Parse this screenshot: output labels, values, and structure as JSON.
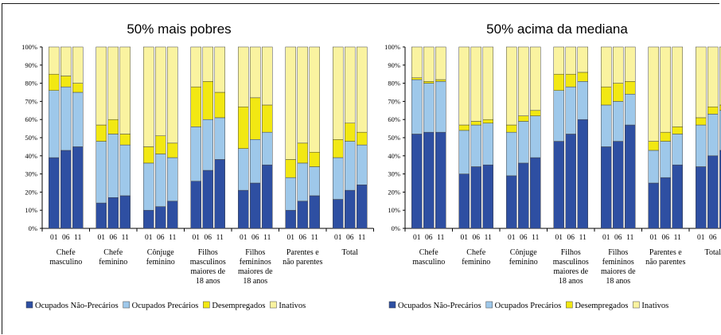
{
  "chart_data": [
    {
      "type": "bar",
      "stacked": true,
      "title": "50% mais pobres",
      "groups": [
        {
          "label": [
            "Chefe",
            "masculino"
          ]
        },
        {
          "label": [
            "Chefe",
            "feminino"
          ]
        },
        {
          "label": [
            "Cônjuge",
            "feminino"
          ]
        },
        {
          "label": [
            "Filhos",
            "masculinos",
            "maiores de",
            "18 anos"
          ]
        },
        {
          "label": [
            "Filhos",
            "femininos",
            "maiores de",
            "18 anos"
          ]
        },
        {
          "label": [
            "Parentes e",
            "não parentes"
          ]
        },
        {
          "label": [
            "Total"
          ]
        }
      ],
      "years": [
        "01",
        "06",
        "11"
      ],
      "series": [
        {
          "name": "Ocupados Não-Precários",
          "color": "#2e4fa2",
          "values": [
            [
              39,
              43,
              45
            ],
            [
              14,
              17,
              18
            ],
            [
              10,
              12,
              15
            ],
            [
              26,
              32,
              38
            ],
            [
              21,
              25,
              35
            ],
            [
              10,
              15,
              18
            ],
            [
              16,
              21,
              24
            ]
          ]
        },
        {
          "name": "Ocupados Precários",
          "color": "#9ec8ea",
          "values": [
            [
              37,
              35,
              30
            ],
            [
              34,
              35,
              28
            ],
            [
              26,
              29,
              24
            ],
            [
              30,
              28,
              23
            ],
            [
              23,
              24,
              18
            ],
            [
              18,
              21,
              16
            ],
            [
              23,
              27,
              22
            ]
          ]
        },
        {
          "name": "Desempregados",
          "color": "#f2e813",
          "values": [
            [
              9,
              6,
              5
            ],
            [
              9,
              8,
              6
            ],
            [
              9,
              10,
              8
            ],
            [
              22,
              21,
              14
            ],
            [
              23,
              23,
              15
            ],
            [
              10,
              11,
              8
            ],
            [
              10,
              10,
              7
            ]
          ]
        },
        {
          "name": "Inativos",
          "color": "#faf3a0",
          "values": [
            [
              15,
              16,
              20
            ],
            [
              43,
              40,
              48
            ],
            [
              55,
              49,
              53
            ],
            [
              22,
              19,
              25
            ],
            [
              33,
              28,
              32
            ],
            [
              62,
              53,
              58
            ],
            [
              51,
              42,
              47
            ]
          ]
        }
      ],
      "ylim": [
        0,
        100
      ],
      "yticks": [
        "0%",
        "10%",
        "20%",
        "30%",
        "40%",
        "50%",
        "60%",
        "70%",
        "80%",
        "90%",
        "100%"
      ],
      "legend": "bottom"
    },
    {
      "type": "bar",
      "stacked": true,
      "title": "50% acima da mediana",
      "groups": [
        {
          "label": [
            "Chefe",
            "masculino"
          ]
        },
        {
          "label": [
            "Chefe",
            "feminino"
          ]
        },
        {
          "label": [
            "Cônjuge",
            "feminino"
          ]
        },
        {
          "label": [
            "Filhos",
            "masculinos",
            "maiores de",
            "18 anos"
          ]
        },
        {
          "label": [
            "Filhos",
            "femininos",
            "maiores de",
            "18 anos"
          ]
        },
        {
          "label": [
            "Parentes e",
            "não parentes"
          ]
        },
        {
          "label": [
            "Total"
          ]
        }
      ],
      "years": [
        "01",
        "06",
        "11"
      ],
      "series": [
        {
          "name": "Ocupados Não-Precários",
          "color": "#2e4fa2",
          "values": [
            [
              52,
              53,
              53
            ],
            [
              30,
              34,
              35
            ],
            [
              29,
              36,
              39
            ],
            [
              48,
              52,
              60
            ],
            [
              45,
              48,
              57
            ],
            [
              25,
              28,
              35
            ],
            [
              34,
              40,
              43
            ]
          ]
        },
        {
          "name": "Ocupados Precários",
          "color": "#9ec8ea",
          "values": [
            [
              30,
              27,
              28
            ],
            [
              24,
              23,
              23
            ],
            [
              24,
              23,
              23
            ],
            [
              28,
              26,
              21
            ],
            [
              23,
              22,
              17
            ],
            [
              18,
              20,
              17
            ],
            [
              23,
              23,
              22
            ]
          ]
        },
        {
          "name": "Desempregados",
          "color": "#f2e813",
          "values": [
            [
              1,
              1,
              1
            ],
            [
              3,
              2,
              2
            ],
            [
              4,
              3,
              3
            ],
            [
              9,
              7,
              5
            ],
            [
              10,
              10,
              7
            ],
            [
              5,
              5,
              4
            ],
            [
              4,
              4,
              3
            ]
          ]
        },
        {
          "name": "Inativos",
          "color": "#faf3a0",
          "values": [
            [
              17,
              19,
              18
            ],
            [
              43,
              41,
              40
            ],
            [
              43,
              38,
              35
            ],
            [
              15,
              15,
              14
            ],
            [
              22,
              20,
              19
            ],
            [
              52,
              47,
              44
            ],
            [
              39,
              33,
              32
            ]
          ]
        }
      ],
      "ylim": [
        0,
        100
      ],
      "yticks": [
        "0%",
        "10%",
        "20%",
        "30%",
        "40%",
        "50%",
        "60%",
        "70%",
        "80%",
        "90%",
        "100%"
      ],
      "legend": "bottom"
    }
  ]
}
